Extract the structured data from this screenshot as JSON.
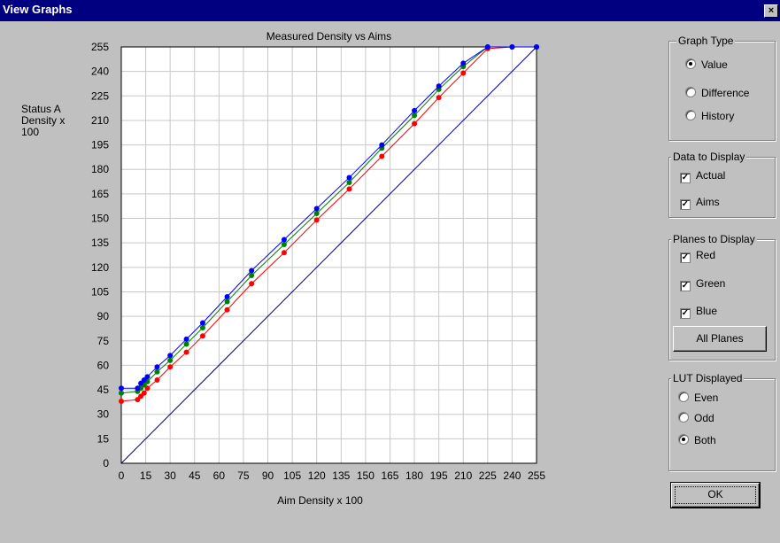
{
  "window": {
    "title": "View Graphs",
    "close_label": "×"
  },
  "panels": {
    "graph_type": {
      "label": "Graph Type",
      "options": [
        "Value",
        "Difference",
        "History"
      ],
      "selected": "Value"
    },
    "data_to_display": {
      "label": "Data to Display",
      "options": [
        {
          "label": "Actual",
          "checked": true
        },
        {
          "label": "Aims",
          "checked": true
        }
      ]
    },
    "planes_to_display": {
      "label": "Planes to Display",
      "options": [
        {
          "label": "Red",
          "checked": true
        },
        {
          "label": "Green",
          "checked": true
        },
        {
          "label": "Blue",
          "checked": true
        }
      ],
      "all_planes_label": "All Planes"
    },
    "lut_displayed": {
      "label": "LUT Displayed",
      "options": [
        "Even",
        "Odd",
        "Both"
      ],
      "selected": "Both"
    },
    "ok_label": "OK"
  },
  "chart_data": {
    "type": "line",
    "title": "Measured Density vs Aims",
    "xlabel": "Aim Density x 100",
    "ylabel": [
      "Status A",
      "Density x",
      "100"
    ],
    "xlim": [
      0,
      255
    ],
    "ylim": [
      0,
      255
    ],
    "xticks": [
      0,
      15,
      30,
      45,
      60,
      75,
      90,
      105,
      120,
      135,
      150,
      165,
      180,
      195,
      210,
      225,
      240,
      255
    ],
    "yticks": [
      0,
      15,
      30,
      45,
      60,
      75,
      90,
      105,
      120,
      135,
      150,
      165,
      180,
      195,
      210,
      225,
      240,
      255
    ],
    "grid": true,
    "colors": {
      "red": "#ff0000",
      "green": "#008000",
      "blue": "#0000ff",
      "aim": "#000080"
    },
    "series": [
      {
        "color": "red",
        "x": [
          0,
          10,
          12,
          14,
          16,
          22,
          30,
          40,
          50,
          65,
          80,
          100,
          120,
          140,
          160,
          180,
          195,
          210,
          225,
          240,
          255
        ],
        "y": [
          38,
          39,
          41,
          43,
          46,
          51,
          59,
          68,
          78,
          94,
          110,
          129,
          149,
          168,
          188,
          208,
          224,
          239,
          254,
          255,
          255
        ]
      },
      {
        "color": "green",
        "x": [
          0,
          10,
          12,
          14,
          16,
          22,
          30,
          40,
          50,
          65,
          80,
          100,
          120,
          140,
          160,
          180,
          195,
          210,
          225,
          240,
          255
        ],
        "y": [
          43,
          44,
          46,
          48,
          50,
          56,
          63,
          73,
          83,
          99,
          115,
          134,
          153,
          172,
          193,
          213,
          229,
          243,
          255,
          255,
          255
        ]
      },
      {
        "color": "blue",
        "x": [
          0,
          10,
          12,
          14,
          16,
          22,
          30,
          40,
          50,
          65,
          80,
          100,
          120,
          140,
          160,
          180,
          195,
          210,
          225,
          240,
          255
        ],
        "y": [
          46,
          46,
          49,
          51,
          53,
          59,
          66,
          76,
          86,
          102,
          118,
          137,
          156,
          175,
          195,
          216,
          231,
          245,
          255,
          255,
          255
        ]
      },
      {
        "color": "aim",
        "x": [
          0,
          255
        ],
        "y": [
          0,
          255
        ],
        "markers": false
      }
    ]
  }
}
